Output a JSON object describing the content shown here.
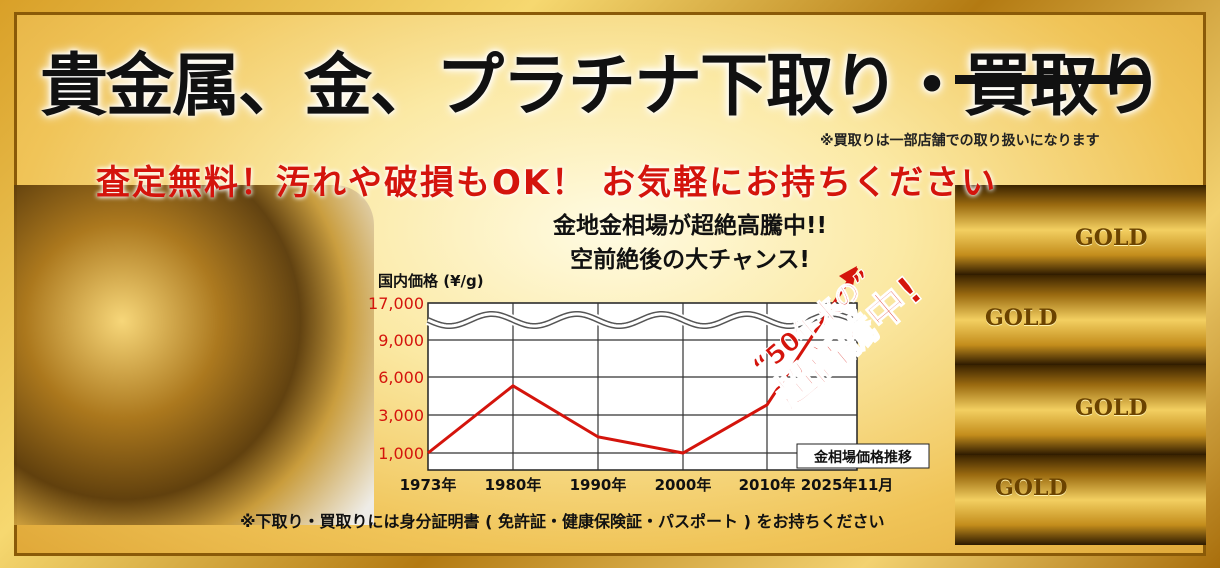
{
  "headline": "貴金属、金、プラチナ下取り・買取り",
  "headline_struck": "買取り",
  "note_top": "※買取りは一部店舗での取り扱いになります",
  "subheadline": "査定無料！汚れや破損もOK！ お気軽にお持ちください",
  "chart_title_1": "金地金相場が超絶高騰中!!",
  "chart_title_2": "空前絶後の大チャンス!",
  "callout_1": "“50年来の”",
  "callout_2": "超高騰中!",
  "bottom_note": "※下取り・買取りには身分証明書 ( 免許証・健康保険証・パスポート ) をお持ちください",
  "gold_bar_label": "GOLD",
  "colors": {
    "accent_red": "#d4140c",
    "gold": "#e8b84a"
  },
  "chart_data": {
    "type": "line",
    "ylabel": "国内価格 (¥/g)",
    "legend": "金相場価格推移",
    "legend_placement": "bottom-right",
    "x": [
      "1973年",
      "1980年",
      "1990年",
      "2000年",
      "2010年",
      "2025年11月"
    ],
    "yticks": [
      "1,000",
      "3,000",
      "6,000",
      "9,000",
      "17,000"
    ],
    "ytick_values": [
      1000,
      3000,
      6000,
      9000,
      17000
    ],
    "axis_break": true,
    "grid": true,
    "series": [
      {
        "values": [
          1000,
          5300,
          1850,
          1000,
          3800,
          17000
        ]
      }
    ]
  }
}
